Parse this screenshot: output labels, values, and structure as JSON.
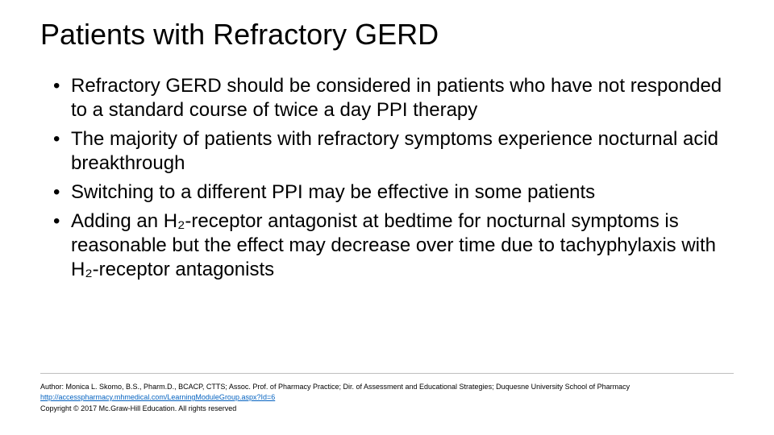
{
  "slide": {
    "title": "Patients with Refractory GERD",
    "bullets": [
      "Refractory GERD should be considered in patients who have not responded to a standard course of twice a day PPI therapy",
      "The majority of patients with refractory symptoms experience nocturnal acid breakthrough",
      "Switching to a different PPI may be effective in some patients",
      "Adding an H₂-receptor antagonist at bedtime for nocturnal symptoms is reasonable but the effect may decrease over time due to tachyphylaxis with H₂-receptor antagonists"
    ],
    "footer": {
      "author": "Author: Monica L. Skomo, B.S., Pharm.D., BCACP, CTTS; Assoc. Prof. of Pharmacy Practice; Dir. of Assessment and Educational Strategies; Duquesne University School of Pharmacy",
      "link": "http://accesspharmacy.mhmedical.com/LearningModuleGroup.aspx?Id=6",
      "copyright": "Copyright © 2017 Mc.Graw-Hill Education. All rights reserved"
    }
  },
  "style": {
    "background_color": "#ffffff",
    "text_color": "#000000",
    "title_fontsize": 36,
    "body_fontsize": 24,
    "footer_fontsize": 9,
    "link_color": "#0563c1",
    "divider_color": "#bfbfbf",
    "font_family": "Arial"
  }
}
